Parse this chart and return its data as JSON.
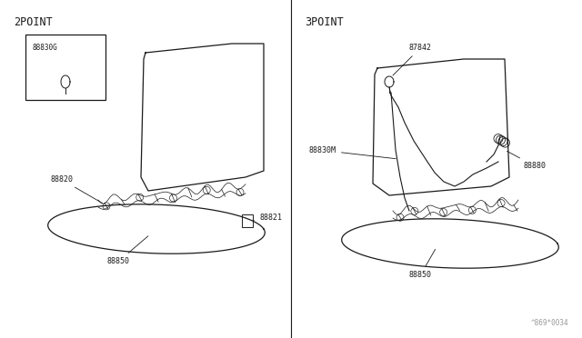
{
  "bg_color": "#ffffff",
  "line_color": "#1a1a1a",
  "fig_width": 6.4,
  "fig_height": 3.72,
  "dpi": 100,
  "title_2point": "2POINT",
  "title_3point": "3POINT",
  "watermark": "^869*0034",
  "font_size_label": 6.0,
  "font_size_title": 8.5
}
